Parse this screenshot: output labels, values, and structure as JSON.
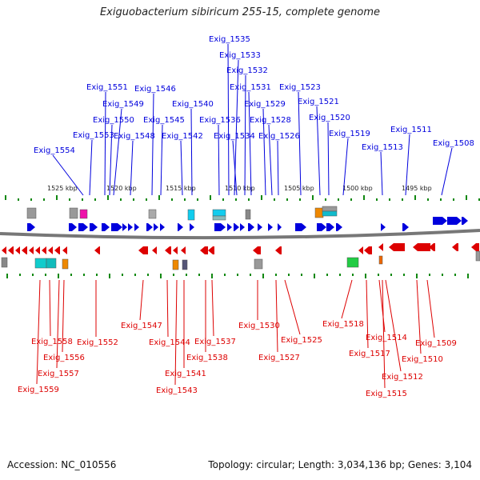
{
  "title": "Exiguobacterium sibiricum 255-15, complete genome",
  "accession": "Accession: NC_010556",
  "summary": "Topology: circular; Length: 3,034,136 bp; Genes: 3,104",
  "colors": {
    "forward": "#0000dd",
    "reverse": "#dd0000",
    "backbone": "#777777",
    "tick": "#118811"
  },
  "kbp_labels": [
    "1525 kbp",
    "1520 kbp",
    "1515 kbp",
    "1510 kbp",
    "1505 kbp",
    "1500 kbp",
    "1495 kbp"
  ],
  "top_genes": [
    "Exig_1554",
    "Exig_1553",
    "Exig_1551",
    "Exig_1550",
    "Exig_1549",
    "Exig_1548",
    "Exig_1546",
    "Exig_1545",
    "Exig_1542",
    "Exig_1540",
    "Exig_1536",
    "Exig_1535",
    "Exig_1534",
    "Exig_1533",
    "Exig_1532",
    "Exig_1531",
    "Exig_1529",
    "Exig_1528",
    "Exig_1526",
    "Exig_1523",
    "Exig_1521",
    "Exig_1520",
    "Exig_1519",
    "Exig_1513",
    "Exig_1511",
    "Exig_1508"
  ],
  "bottom_genes": [
    "Exig_1559",
    "Exig_1558",
    "Exig_1557",
    "Exig_1556",
    "Exig_1552",
    "Exig_1547",
    "Exig_1544",
    "Exig_1543",
    "Exig_1541",
    "Exig_1538",
    "Exig_1537",
    "Exig_1530",
    "Exig_1527",
    "Exig_1525",
    "Exig_1518",
    "Exig_1517",
    "Exig_1515",
    "Exig_1514",
    "Exig_1512",
    "Exig_1510",
    "Exig_1509"
  ]
}
